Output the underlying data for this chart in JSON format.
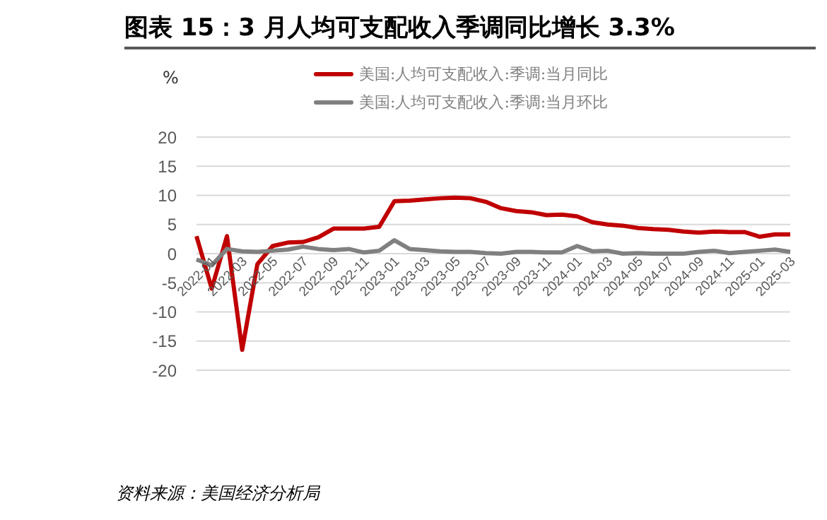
{
  "chart_data": {
    "type": "line",
    "title": "图表 15：3 月人均可支配收入季调同比增长 3.3%",
    "ylabel": "%",
    "categories": [
      null,
      "2022-01",
      null,
      "2022-03",
      null,
      "2022-05",
      null,
      "2022-07",
      null,
      "2022-09",
      null,
      "2022-11",
      null,
      "2023-01",
      null,
      "2023-03",
      null,
      "2023-05",
      null,
      "2023-07",
      null,
      "2023-09",
      null,
      "2023-11",
      null,
      "2024-01",
      null,
      "2024-03",
      null,
      "2024-05",
      null,
      "2024-07",
      null,
      "2024-09",
      null,
      "2024-11",
      null,
      "2025-01",
      null,
      "2025-03"
    ],
    "series": [
      {
        "name": "美国:人均可支配收入:季调:当月同比",
        "color": "#c00000",
        "values": [
          3,
          -6,
          3,
          -16.5,
          -1.8,
          1.3,
          1.9,
          2.0,
          2.8,
          4.3,
          4.3,
          4.3,
          4.6,
          9.0,
          9.1,
          9.3,
          9.5,
          9.6,
          9.5,
          8.9,
          7.8,
          7.3,
          7.1,
          6.6,
          6.7,
          6.4,
          5.4,
          5.0,
          4.8,
          4.4,
          4.2,
          4.1,
          3.8,
          3.6,
          3.8,
          3.7,
          3.7,
          2.9,
          3.3,
          3.3
        ]
      },
      {
        "name": "美国:人均可支配收入:季调:当月环比",
        "color": "#808080",
        "values": [
          -1,
          -2,
          0.8,
          0.4,
          0.3,
          0.5,
          0.7,
          1.2,
          0.8,
          0.6,
          0.8,
          0.2,
          0.5,
          2.3,
          0.8,
          0.6,
          0.4,
          0.3,
          0.3,
          0.1,
          0.0,
          0.3,
          0.3,
          0.2,
          0.2,
          1.3,
          0.4,
          0.5,
          0.0,
          0.1,
          0.0,
          0.0,
          0.0,
          0.3,
          0.5,
          0.1,
          0.3,
          0.5,
          0.7,
          0.3
        ]
      }
    ],
    "ylim": [
      -20,
      20
    ],
    "yticks": [
      -20,
      -15,
      -10,
      -5,
      0,
      5,
      10,
      15,
      20
    ],
    "grid": "y",
    "legend": "top",
    "marker": "none",
    "line_style": "solid",
    "annotations": [
      "资料来源：美国经济分析局"
    ]
  }
}
